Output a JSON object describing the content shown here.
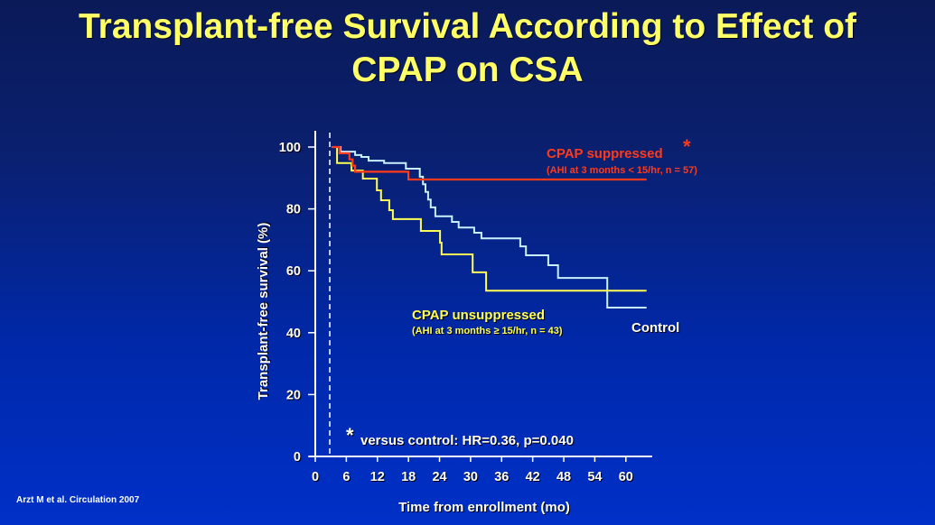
{
  "title": {
    "line1": "Transplant-free Survival According to Effect of",
    "line2": "CPAP on CSA"
  },
  "citation": "Arzt M et al. Circulation 2007",
  "colors": {
    "title": "#ffff66",
    "suppressed": "#ff3a1a",
    "unsuppressed": "#ffff55",
    "control": "#c8f0ff",
    "axis": "#ffffff"
  },
  "chart_data": {
    "type": "line",
    "step": true,
    "title": "Transplant-free Survival According to Effect of CPAP on CSA",
    "xlabel": "Time from enrollment (mo)",
    "ylabel": "Transplant-free survival (%)",
    "xlim": [
      0,
      65
    ],
    "ylim": [
      0,
      100
    ],
    "xticks": [
      "0",
      "6",
      "12",
      "18",
      "24",
      "30",
      "36",
      "42",
      "48",
      "54",
      "60"
    ],
    "xtick_values": [
      0,
      6,
      12,
      18,
      24,
      30,
      36,
      42,
      48,
      54,
      60
    ],
    "yticks": [
      "0",
      "20",
      "40",
      "60",
      "80",
      "100"
    ],
    "ytick_values": [
      0,
      20,
      40,
      60,
      80,
      100
    ],
    "reference_line_x": 2.8,
    "series": [
      {
        "name": "CPAP suppressed",
        "label": "CPAP suppressed",
        "marker": "*",
        "sublabel": "(AHI at 3 months < 15/hr, n = 57)",
        "color": "#ff3a1a",
        "x": [
          3.2,
          4.7,
          6.6,
          7.2,
          7.7,
          18.0,
          64.0
        ],
        "y": [
          100,
          98,
          96,
          94,
          92,
          89.5,
          89.5
        ]
      },
      {
        "name": "CPAP unsuppressed",
        "label": "CPAP unsuppressed",
        "sublabel": "(AHI at 3 months ≥ 15/hr, n = 43)",
        "color": "#ffff55",
        "x": [
          3.2,
          4.2,
          7.0,
          9.2,
          11.9,
          12.7,
          14.3,
          15.0,
          20.4,
          24.1,
          24.4,
          30.4,
          33.0,
          64.0
        ],
        "y": [
          100,
          94.8,
          92.4,
          89.8,
          86.0,
          82.8,
          79.6,
          76.7,
          72.9,
          69.1,
          65.3,
          59.5,
          53.6,
          53.6
        ]
      },
      {
        "name": "Control",
        "label": "Control",
        "color": "#c8f0ff",
        "x": [
          3.2,
          4.9,
          7.7,
          8.9,
          10.3,
          13.3,
          17.5,
          20.2,
          20.8,
          21.3,
          21.8,
          22.3,
          23.2,
          26.4,
          27.7,
          30.7,
          32.1,
          39.6,
          40.7,
          45.0,
          46.9,
          56.4,
          64.0
        ],
        "y": [
          100,
          98.5,
          97.4,
          96.8,
          95.6,
          94.8,
          93.0,
          90.4,
          88.0,
          85.5,
          83.0,
          80.5,
          77.6,
          75.8,
          74.0,
          72.3,
          70.5,
          67.9,
          65.0,
          61.8,
          57.7,
          48.1,
          48.1
        ]
      }
    ],
    "annotation": {
      "marker": "*",
      "text": "versus control: HR=0.36,  p=0.040"
    }
  }
}
